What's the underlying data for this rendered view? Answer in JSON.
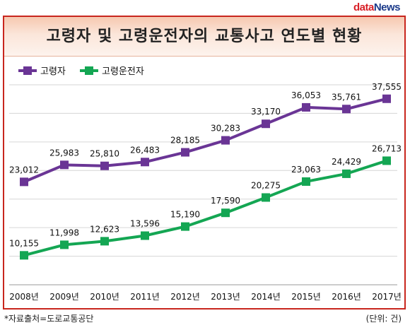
{
  "brand": {
    "logo_part1": "data",
    "logo_part2": "News"
  },
  "footnote": "*자료출처=도로교통공단",
  "unit": "(단위: 건)",
  "colors": {
    "series1": "#6a3595",
    "series2": "#14a653",
    "frame": "#c8261e"
  },
  "chart_data": {
    "type": "line",
    "title": "고령자 및 고령운전자의 교통사고 연도별 현황",
    "categories": [
      "2008년",
      "2009년",
      "2010년",
      "2011년",
      "2012년",
      "2013년",
      "2014년",
      "2015년",
      "2016년",
      "2017년"
    ],
    "series": [
      {
        "name": "고령자",
        "values": [
          23012,
          25983,
          25810,
          26483,
          28185,
          30283,
          33170,
          36053,
          35761,
          37555
        ]
      },
      {
        "name": "고령운전자",
        "values": [
          10155,
          11998,
          12623,
          13596,
          15190,
          17590,
          20275,
          23063,
          24429,
          26713
        ]
      }
    ],
    "ylim": [
      5000,
      40000
    ],
    "grid": true,
    "legend": "top-left"
  }
}
